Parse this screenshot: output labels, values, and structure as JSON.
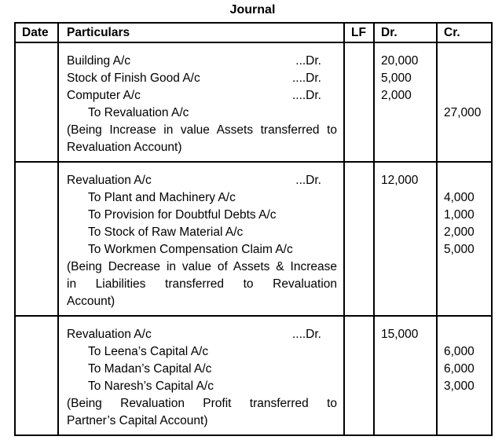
{
  "title": "Journal",
  "columns": {
    "date": "Date",
    "particulars": "Particulars",
    "lf": "LF",
    "dr": "Dr.",
    "cr": "Cr."
  },
  "entries": [
    {
      "lines": [
        {
          "type": "debit",
          "text": "Building A/c",
          "suffix": "...Dr.",
          "dr": "20,000",
          "cr": ""
        },
        {
          "type": "debit",
          "text": "Stock of Finish Good A/c",
          "suffix": "....Dr.",
          "dr": "5,000",
          "cr": ""
        },
        {
          "type": "debit",
          "text": "Computer A/c",
          "suffix": "....Dr.",
          "dr": "2,000",
          "cr": ""
        },
        {
          "type": "credit",
          "text": "To Revaluation A/c",
          "dr": "",
          "cr": "27,000"
        },
        {
          "type": "narration-justified",
          "text": "(Being Increase in value Assets transferred to",
          "dr": "",
          "cr": ""
        },
        {
          "type": "narration",
          "text": "Revaluation Account)",
          "dr": "",
          "cr": ""
        }
      ]
    },
    {
      "lines": [
        {
          "type": "debit",
          "text": "Revaluation A/c",
          "suffix": "...Dr.",
          "dr": "12,000",
          "cr": ""
        },
        {
          "type": "credit",
          "text": "To Plant and Machinery A/c",
          "dr": "",
          "cr": "4,000"
        },
        {
          "type": "credit",
          "text": "To Provision for Doubtful Debts A/c",
          "dr": "",
          "cr": "1,000"
        },
        {
          "type": "credit",
          "text": "To Stock of Raw Material A/c",
          "dr": "",
          "cr": "2,000"
        },
        {
          "type": "credit",
          "text": "To Workmen Compensation Claim A/c",
          "dr": "",
          "cr": "5,000"
        },
        {
          "type": "narration-justified",
          "text": "(Being Decrease in value of Assets & Increase",
          "dr": "",
          "cr": ""
        },
        {
          "type": "narration-justified",
          "text": "in Liabilities transferred to Revaluation",
          "dr": "",
          "cr": ""
        },
        {
          "type": "narration",
          "text": "Account)",
          "dr": "",
          "cr": ""
        }
      ]
    },
    {
      "lines": [
        {
          "type": "debit",
          "text": "Revaluation A/c",
          "suffix": "....Dr.",
          "dr": "15,000",
          "cr": ""
        },
        {
          "type": "credit",
          "text": "To Leena’s Capital A/c",
          "dr": "",
          "cr": "6,000"
        },
        {
          "type": "credit",
          "text": "To Madan’s Capital A/c",
          "dr": "",
          "cr": "6,000"
        },
        {
          "type": "credit",
          "text": "To Naresh’s Capital A/c",
          "dr": "",
          "cr": "3,000"
        },
        {
          "type": "narration-justified",
          "text": "(Being Revaluation Profit transferred to",
          "dr": "",
          "cr": ""
        },
        {
          "type": "narration",
          "text": "Partner’s Capital Account)",
          "dr": "",
          "cr": ""
        }
      ]
    }
  ]
}
